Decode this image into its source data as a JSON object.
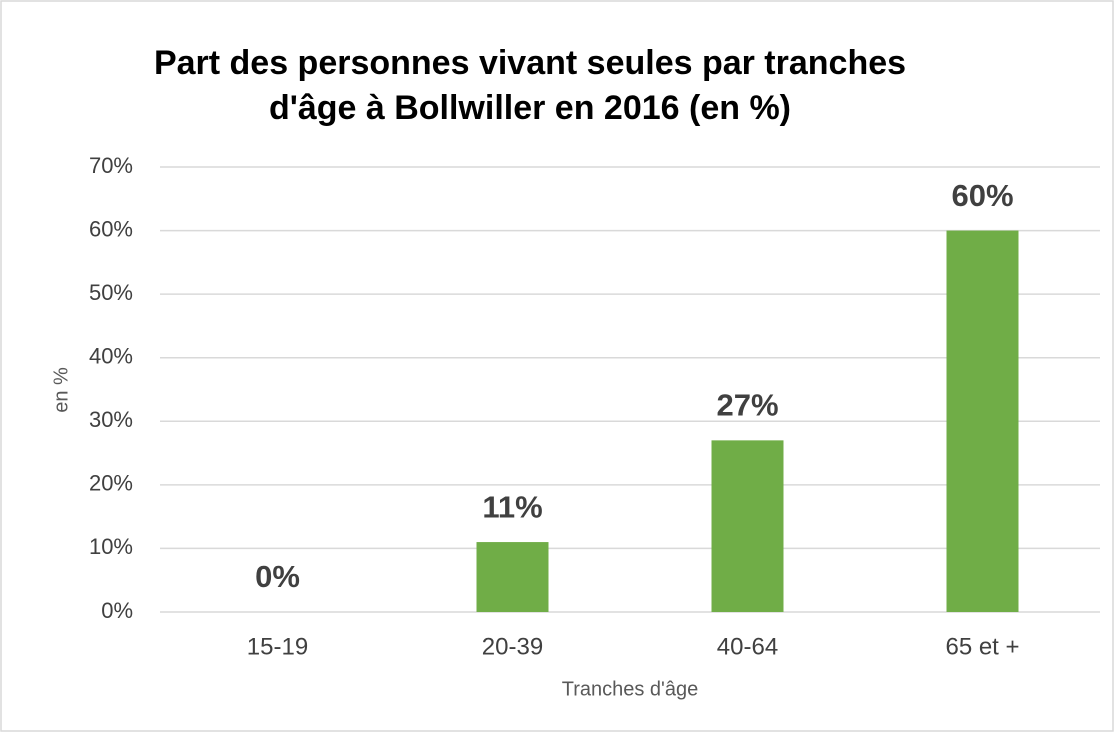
{
  "chart_data": {
    "type": "bar",
    "title": [
      "Part des personnes vivant seules par tranches",
      "d'âge à Bollwiller en 2016 (en %)"
    ],
    "categories": [
      "15-19",
      "20-39",
      "40-64",
      "65 et +"
    ],
    "values": [
      0,
      11,
      27,
      60
    ],
    "value_labels": [
      "0%",
      "11%",
      "27%",
      "60%"
    ],
    "color": "#70ad47",
    "ylim": [
      0,
      70
    ],
    "yticks": [
      {
        "value": 0,
        "label": "0%"
      },
      {
        "value": 10,
        "label": "10%"
      },
      {
        "value": 20,
        "label": "20%"
      },
      {
        "value": 30,
        "label": "30%"
      },
      {
        "value": 40,
        "label": "40%"
      },
      {
        "value": 50,
        "label": "50%"
      },
      {
        "value": 60,
        "label": "60%"
      },
      {
        "value": 70,
        "label": "70%"
      }
    ],
    "ylabel": "en %",
    "xlabel": "Tranches d'âge",
    "grid": true
  }
}
